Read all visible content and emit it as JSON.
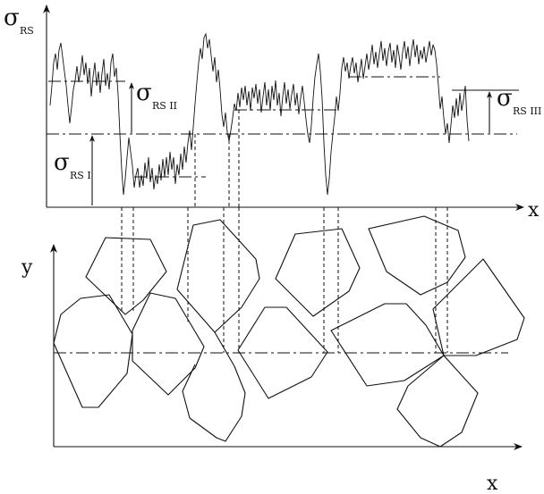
{
  "labels": {
    "sigma_rs_axis": {
      "symbol": "σ",
      "subscript": "RS"
    },
    "sigma_rs_i": {
      "symbol": "σ",
      "subscript": "RS I"
    },
    "sigma_rs_ii": {
      "symbol": "σ",
      "subscript": "RS II"
    },
    "sigma_rs_iii": {
      "symbol": "σ",
      "subscript": "RS III"
    },
    "x_axis_top": "x",
    "x_axis_bottom": "x",
    "y_axis": "y"
  }
}
